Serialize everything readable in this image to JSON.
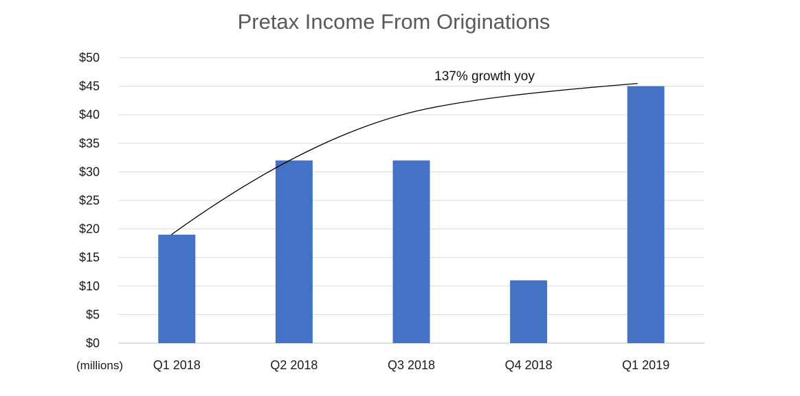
{
  "chart_data": {
    "type": "bar",
    "title": "Pretax Income From Originations",
    "categories": [
      "Q1 2018",
      "Q2 2018",
      "Q3 2018",
      "Q4 2018",
      "Q1 2019"
    ],
    "values": [
      19,
      32,
      32,
      11,
      45
    ],
    "ylim": [
      0,
      50
    ],
    "y_ticks": [
      "$0",
      "$5",
      "$10",
      "$15",
      "$20",
      "$25",
      "$30",
      "$35",
      "$40",
      "$45",
      "$50"
    ],
    "y_unit_label": "(millions)",
    "grid": true,
    "legend": "none",
    "bar_color": "#4472c4",
    "annotation": {
      "text": "137% growth yoy",
      "trend_line": true
    }
  }
}
